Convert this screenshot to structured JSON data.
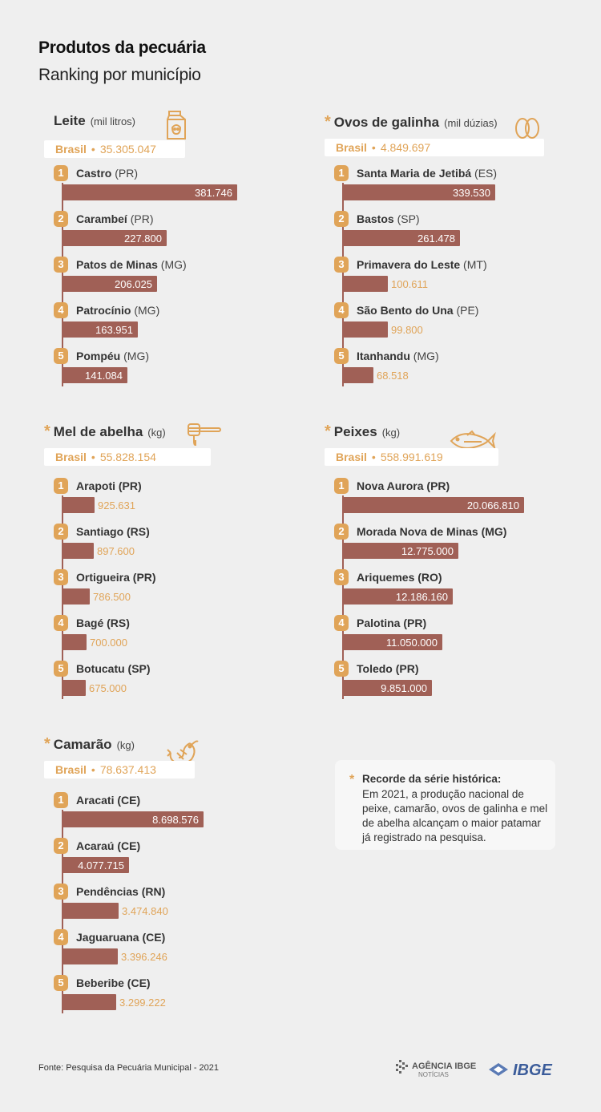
{
  "header": {
    "title": "Produtos da pecuária",
    "subtitle": "Ranking por município"
  },
  "colors": {
    "accent": "#e0a458",
    "bar": "#a06056",
    "background": "#efefef"
  },
  "chart_data": [
    {
      "type": "bar",
      "title": "Leite",
      "unit": "(mil litros)",
      "record": false,
      "icon": "milk-carton-icon",
      "brasil_label": "Brasil",
      "brasil_value": "35.305.047",
      "ranks": [
        "1",
        "2",
        "3",
        "4",
        "5"
      ],
      "categories": [
        "Castro",
        "Carambeí",
        "Patos de Minas",
        "Patrocínio",
        "Pompéu"
      ],
      "states": [
        "(PR)",
        "(PR)",
        "(MG)",
        "(MG)",
        "(MG)"
      ],
      "values": [
        381746,
        227800,
        206025,
        163951,
        141084
      ],
      "labels": [
        "381.746",
        "227.800",
        "206.025",
        "163.951",
        "141.084"
      ],
      "bold_state": false
    },
    {
      "type": "bar",
      "title": "Ovos de galinha",
      "unit": "(mil dúzias)",
      "record": true,
      "icon": "eggs-icon",
      "brasil_label": "Brasil",
      "brasil_value": "4.849.697",
      "ranks": [
        "1",
        "2",
        "3",
        "4",
        "5"
      ],
      "categories": [
        "Santa Maria de Jetibá",
        "Bastos",
        "Primavera do Leste",
        "São Bento do Una",
        "Itanhandu"
      ],
      "states": [
        "(ES)",
        "(SP)",
        "(MT)",
        "(PE)",
        "(MG)"
      ],
      "values": [
        339530,
        261478,
        100611,
        99800,
        68518
      ],
      "labels": [
        "339.530",
        "261.478",
        "100.611",
        "99.800",
        "68.518"
      ],
      "bold_state": false
    },
    {
      "type": "bar",
      "title": "Mel de abelha",
      "unit": "(kg)",
      "record": true,
      "icon": "honey-dipper-icon",
      "brasil_label": "Brasil",
      "brasil_value": "55.828.154",
      "ranks": [
        "1",
        "2",
        "3",
        "4",
        "5"
      ],
      "categories": [
        "Arapoti",
        "Santiago",
        "Ortigueira",
        "Bagé",
        "Botucatu"
      ],
      "states": [
        "(PR)",
        "(RS)",
        "(PR)",
        "(RS)",
        "(SP)"
      ],
      "values": [
        925631,
        897600,
        786500,
        700000,
        675000
      ],
      "labels": [
        "925.631",
        "897.600",
        "786.500",
        "700.000",
        "675.000"
      ],
      "bold_state": true
    },
    {
      "type": "bar",
      "title": "Peixes",
      "unit": "(kg)",
      "record": true,
      "icon": "fish-icon",
      "brasil_label": "Brasil",
      "brasil_value": "558.991.619",
      "ranks": [
        "1",
        "2",
        "3",
        "4",
        "5"
      ],
      "categories": [
        "Nova Aurora",
        "Morada Nova de Minas",
        "Ariquemes",
        "Palotina",
        "Toledo"
      ],
      "states": [
        "(PR)",
        "(MG)",
        "(RO)",
        "(PR)",
        "(PR)"
      ],
      "values": [
        20066810,
        12775000,
        12186160,
        11050000,
        9851000
      ],
      "labels": [
        "20.066.810",
        "12.775.000",
        "12.186.160",
        "11.050.000",
        "9.851.000"
      ],
      "bold_state": true
    },
    {
      "type": "bar",
      "title": "Camarão",
      "unit": "(kg)",
      "record": true,
      "icon": "shrimp-icon",
      "brasil_label": "Brasil",
      "brasil_value": "78.637.413",
      "ranks": [
        "1",
        "2",
        "3",
        "4",
        "5"
      ],
      "categories": [
        "Aracati",
        "Acaraú",
        "Pendências",
        "Jaguaruana",
        "Beberibe"
      ],
      "states": [
        "(CE)",
        "(CE)",
        "(RN)",
        "(CE)",
        "(CE)"
      ],
      "values": [
        8698576,
        4077715,
        3474840,
        3396246,
        3299222
      ],
      "labels": [
        "8.698.576",
        "4.077.715",
        "3.474.840",
        "3.396.246",
        "3.299.222"
      ],
      "bold_state": true
    }
  ],
  "note": {
    "star": "*",
    "title": "Recorde da série histórica",
    "body": "Em 2021, a produção nacional de peixe, camarão, ovos de galinha e mel de abelha alcançam o maior patamar já registrado na pesquisa."
  },
  "footer": {
    "source": "Fonte: Pesquisa da Pecuária Municipal - 2021",
    "logo_agencia_main": "AGÊNCIA IBGE",
    "logo_agencia_sub": "NOTÍCIAS",
    "logo_ibge": "IBGE"
  }
}
